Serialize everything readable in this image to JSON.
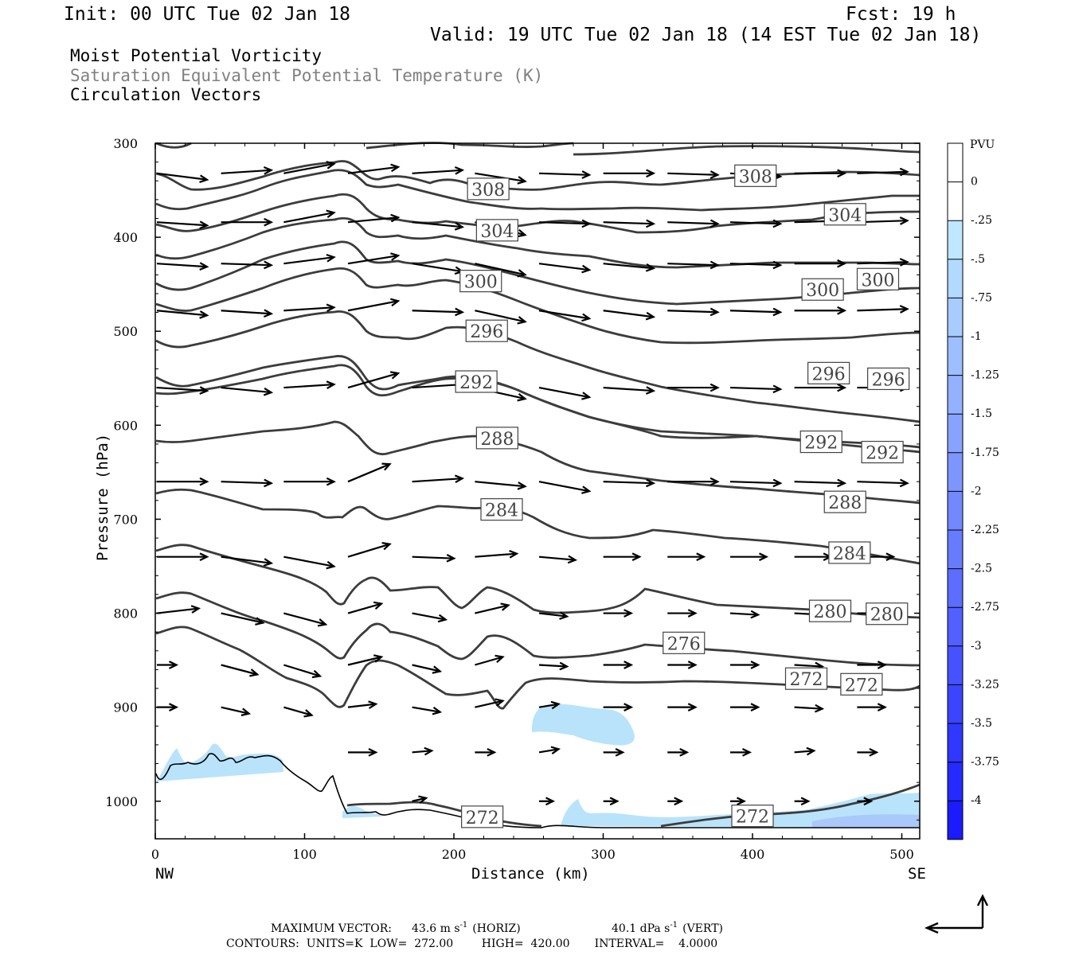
{
  "header": {
    "init": "Init: 00 UTC Tue 02 Jan 18",
    "fcst": "Fcst:   19 h",
    "valid": "Valid: 19 UTC Tue 02 Jan 18 (14 EST Tue 02 Jan 18)"
  },
  "titles": {
    "line1": "Moist Potential Vorticity",
    "line2": "Saturation Equivalent Potential Temperature (K)",
    "line3": "Circulation Vectors",
    "line2_color": "#808080"
  },
  "axes": {
    "ylabel": "Pressure (hPa)",
    "xlabel": "Distance (km)",
    "x_left_end": "NW",
    "x_right_end": "SE",
    "y_ticks": [
      "300",
      "400",
      "500",
      "600",
      "700",
      "800",
      "900",
      "1000"
    ],
    "x_ticks": [
      "0",
      "100",
      "200",
      "300",
      "400",
      "500"
    ]
  },
  "colorbar": {
    "unit": "PVU",
    "labels": [
      "0",
      "-.25",
      "-.5",
      "-.75",
      "-1",
      "-1.25",
      "-1.5",
      "-1.75",
      "-2",
      "-2.25",
      "-2.5",
      "-2.75",
      "-3",
      "-3.25",
      "-3.5",
      "-3.75",
      "-4"
    ],
    "colors": [
      "#ffffff",
      "#ffffff",
      "#bfe7ff",
      "#b2d9ff",
      "#a8ccff",
      "#9dbeff",
      "#93b1ff",
      "#88a3ff",
      "#7d96ff",
      "#7288ff",
      "#677bff",
      "#5c6dff",
      "#5160ff",
      "#4652ff",
      "#3b45ff",
      "#3037ff",
      "#252aff",
      "#1a1cff"
    ]
  },
  "footer": {
    "max_vector_label": "MAXIMUM VECTOR:",
    "horiz_value": "43.6 m s",
    "horiz_exp": "-1",
    "horiz_tag": "(HORIZ)",
    "vert_value": "40.1 dPa s",
    "vert_exp": "-1",
    "vert_tag": "(VERT)",
    "contours": "CONTOURS:  UNITS=K  LOW=  272.00        HIGH=  420.00       INTERVAL=    4.0000"
  },
  "chart_data": {
    "type": "cross-section",
    "x_range_km": [
      0,
      512
    ],
    "y_range_hpa": [
      300,
      1040
    ],
    "y_scale": "linear",
    "contour_labels": [
      {
        "text": "308",
        "x": 223,
        "p": 349
      },
      {
        "text": "308",
        "x": 402,
        "p": 335
      },
      {
        "text": "304",
        "x": 229,
        "p": 393
      },
      {
        "text": "304",
        "x": 462,
        "p": 376
      },
      {
        "text": "300",
        "x": 218,
        "p": 447
      },
      {
        "text": "300",
        "x": 447,
        "p": 456
      },
      {
        "text": "300",
        "x": 484,
        "p": 445
      },
      {
        "text": "296",
        "x": 222,
        "p": 500
      },
      {
        "text": "296",
        "x": 451,
        "p": 545
      },
      {
        "text": "296",
        "x": 491,
        "p": 551
      },
      {
        "text": "292",
        "x": 215,
        "p": 554
      },
      {
        "text": "292",
        "x": 446,
        "p": 618
      },
      {
        "text": "292",
        "x": 487,
        "p": 629
      },
      {
        "text": "288",
        "x": 229,
        "p": 614
      },
      {
        "text": "288",
        "x": 462,
        "p": 682
      },
      {
        "text": "284",
        "x": 232,
        "p": 690
      },
      {
        "text": "284",
        "x": 465,
        "p": 736
      },
      {
        "text": "280",
        "x": 452,
        "p": 798
      },
      {
        "text": "280",
        "x": 490,
        "p": 801
      },
      {
        "text": "276",
        "x": 354,
        "p": 832
      },
      {
        "text": "272",
        "x": 436,
        "p": 870
      },
      {
        "text": "272",
        "x": 473,
        "p": 876
      },
      {
        "text": "272",
        "x": 219,
        "p": 1017
      },
      {
        "text": "272",
        "x": 400,
        "p": 1016
      }
    ]
  }
}
